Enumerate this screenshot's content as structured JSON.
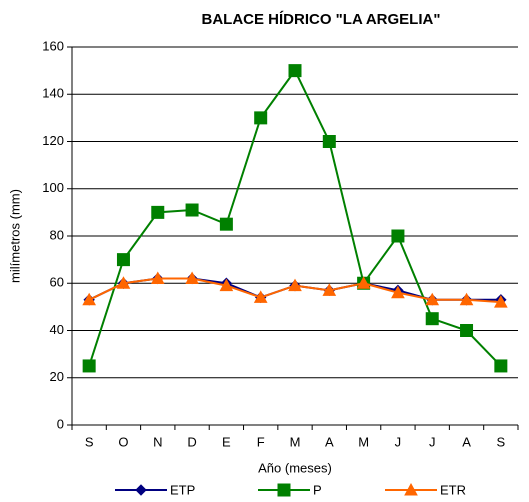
{
  "chart_data": {
    "type": "line",
    "title": "BALACE HÍDRICO \"LA ARGELIA\"",
    "xlabel": "Año (meses)",
    "ylabel": "milímetros (mm)",
    "categories": [
      "S",
      "O",
      "N",
      "D",
      "E",
      "F",
      "M",
      "A",
      "M",
      "J",
      "J",
      "A",
      "S"
    ],
    "series": [
      {
        "name": "ETP",
        "color": "#000080",
        "marker": "diamond",
        "values": [
          53,
          60,
          62,
          62,
          60,
          54,
          59,
          57,
          60,
          57,
          53,
          53,
          53
        ]
      },
      {
        "name": "P",
        "color": "#008000",
        "marker": "square",
        "values": [
          25,
          70,
          90,
          91,
          85,
          130,
          150,
          120,
          60,
          80,
          45,
          40,
          25
        ]
      },
      {
        "name": "ETR",
        "color": "#ff6600",
        "marker": "triangle",
        "values": [
          53,
          60,
          62,
          62,
          59,
          54,
          59,
          57,
          60,
          56,
          53,
          53,
          52
        ]
      }
    ],
    "ylim": [
      0,
      160
    ],
    "yticks": [
      0,
      20,
      40,
      60,
      80,
      100,
      120,
      140,
      160
    ],
    "grid": true,
    "legend": "bottom"
  }
}
